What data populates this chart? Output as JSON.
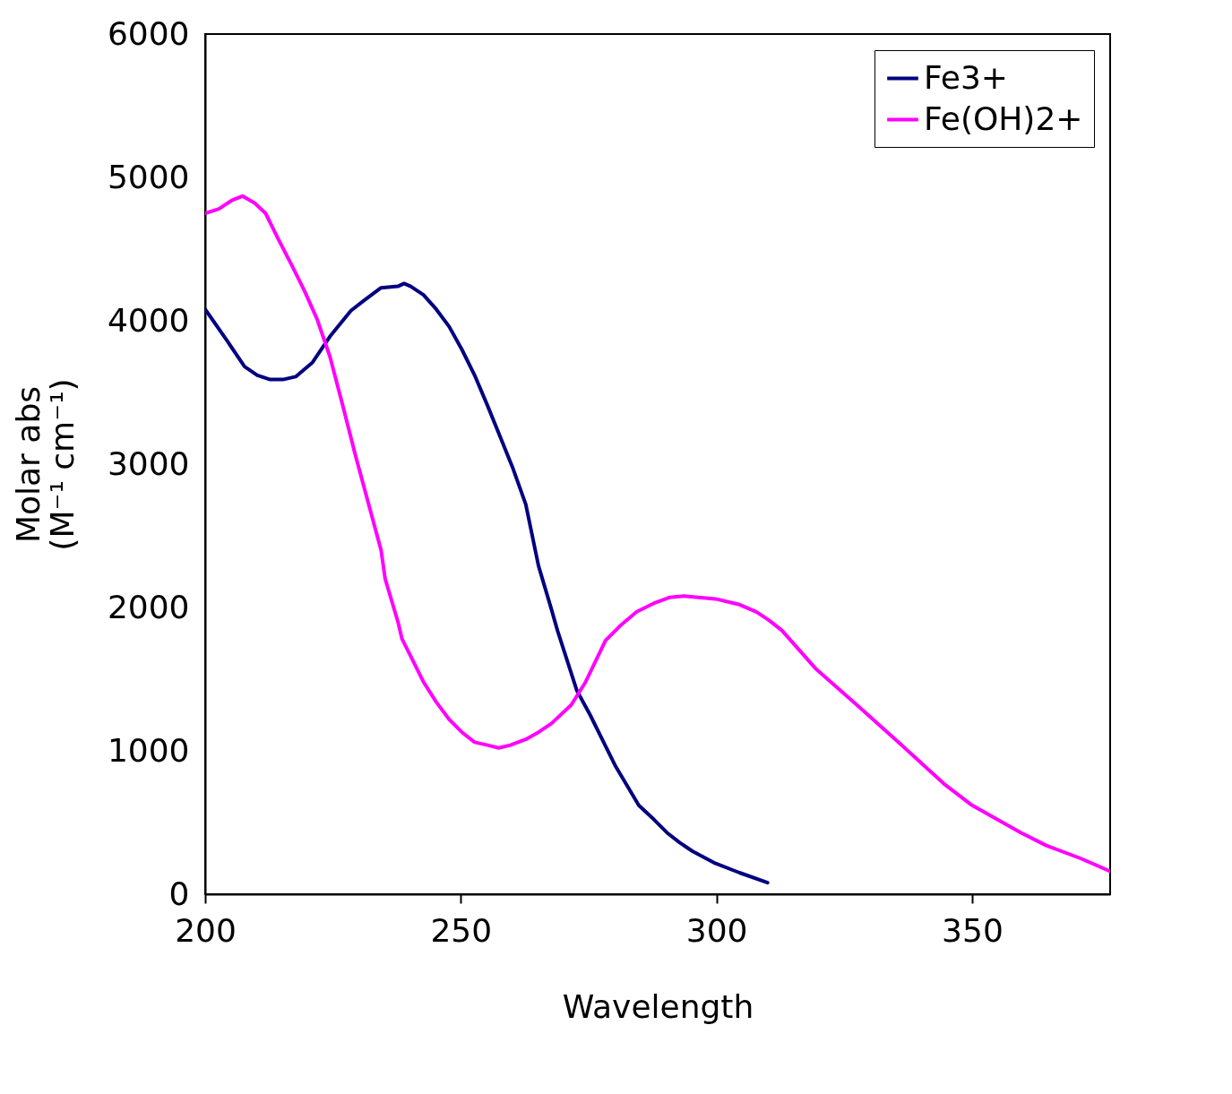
{
  "chart_data": {
    "type": "line",
    "xlabel": "Wavelength",
    "ylabel": "Molar abs\n(M⁻¹ cm⁻¹)",
    "xlim": [
      200,
      377
    ],
    "xticks": [
      200,
      250,
      300,
      350
    ],
    "ylim": [
      0,
      6000
    ],
    "yticks": [
      0,
      1000,
      2000,
      3000,
      4000,
      5000,
      6000
    ],
    "grid": false,
    "legend": "top right",
    "marker": "none",
    "line_style": "solid",
    "series": [
      {
        "name": "Fe3+",
        "color": "#000080",
        "x": [
          200,
          204.3,
          207.7,
          210.2,
          212.7,
          215.2,
          217.7,
          221,
          224.4,
          228.5,
          231,
          234.4,
          237.7,
          238.9,
          240.2,
          242.7,
          245.2,
          247.7,
          250.2,
          252.7,
          255.2,
          257.7,
          260.2,
          262.7,
          265.2,
          267.7,
          268.9,
          272.7,
          275.3,
          277.8,
          280.3,
          282.8,
          284.8,
          287.8,
          290.3,
          292.8,
          295.3,
          299.5,
          304.5,
          310
        ],
        "values": [
          4080,
          3860,
          3680,
          3620,
          3590,
          3590,
          3610,
          3710,
          3890,
          4070,
          4140,
          4230,
          4240,
          4260,
          4240,
          4180,
          4080,
          3960,
          3800,
          3620,
          3410,
          3190,
          2970,
          2720,
          2290,
          1990,
          1840,
          1420,
          1250,
          1070,
          890,
          740,
          620,
          520,
          430,
          360,
          300,
          220,
          150,
          80
        ]
      },
      {
        "name": "Fe(OH)2+",
        "color": "#ff00ff",
        "x": [
          200,
          202.7,
          205.2,
          207.3,
          209.7,
          211.8,
          214.3,
          216.9,
          219.4,
          221.9,
          224.4,
          226.9,
          229.4,
          231.9,
          234.4,
          235.2,
          237.7,
          238.5,
          240.2,
          242.7,
          245.2,
          247.7,
          250.2,
          252.7,
          255.2,
          257.4,
          259.7,
          262.7,
          265.2,
          267.7,
          271.6,
          274.4,
          278.3,
          281.1,
          284.4,
          287.8,
          290.8,
          293.6,
          299.8,
          304.5,
          307.8,
          310.3,
          312.8,
          319.5,
          327.8,
          336.2,
          344.5,
          350,
          359.5,
          364.5,
          371.2,
          377
        ],
        "values": [
          4750,
          4780,
          4840,
          4870,
          4820,
          4750,
          4570,
          4390,
          4210,
          4010,
          3750,
          3410,
          3060,
          2730,
          2400,
          2200,
          1900,
          1780,
          1660,
          1480,
          1340,
          1220,
          1130,
          1060,
          1040,
          1020,
          1040,
          1080,
          1130,
          1190,
          1320,
          1480,
          1770,
          1870,
          1970,
          2030,
          2070,
          2080,
          2060,
          2020,
          1970,
          1910,
          1840,
          1570,
          1310,
          1040,
          770,
          620,
          430,
          340,
          250,
          160
        ]
      }
    ]
  }
}
